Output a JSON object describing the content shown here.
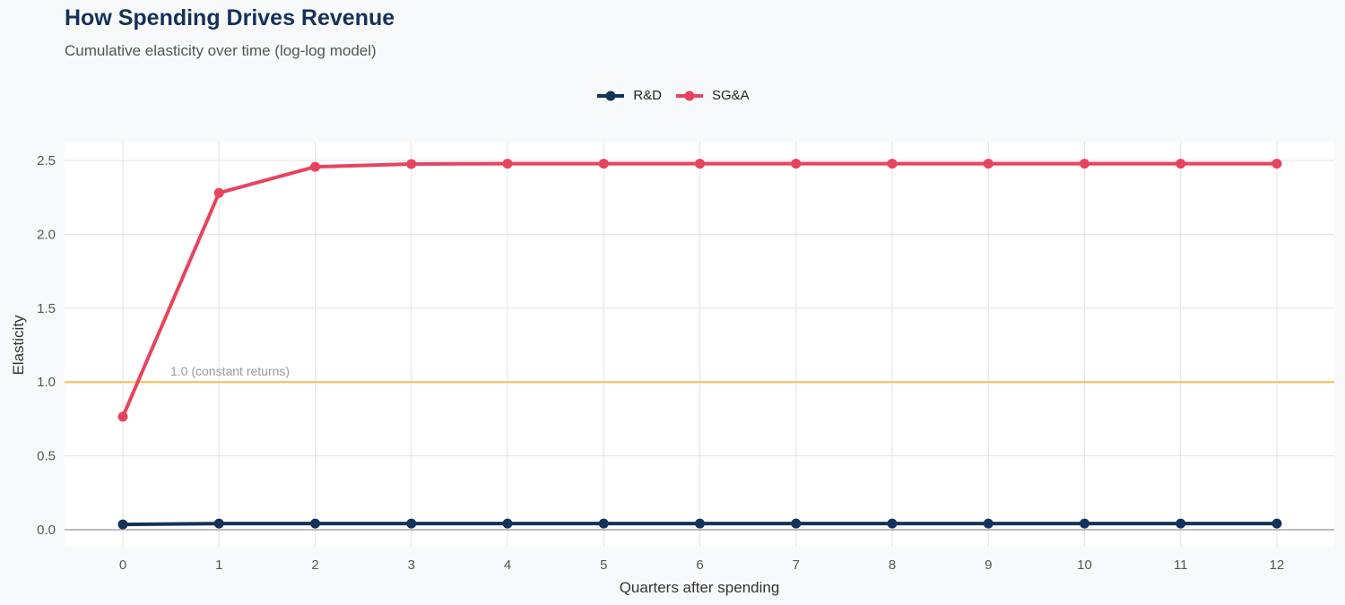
{
  "title": "How Spending Drives Revenue",
  "subtitle": "Cumulative elasticity over time (log-log model)",
  "chart_data": {
    "type": "line",
    "xlabel": "Quarters after spending",
    "ylabel": "Elasticity",
    "x": [
      0,
      1,
      2,
      3,
      4,
      5,
      6,
      7,
      8,
      9,
      10,
      11,
      12
    ],
    "xlim": [
      -0.6,
      12.6
    ],
    "ylim": [
      0,
      2.5
    ],
    "yticks": [
      "0.0",
      "0.5",
      "1.0",
      "1.5",
      "2.0",
      "2.5"
    ],
    "xticks": [
      "0",
      "1",
      "2",
      "3",
      "4",
      "5",
      "6",
      "7",
      "8",
      "9",
      "10",
      "11",
      "12"
    ],
    "grid": true,
    "legend": "top",
    "series": [
      {
        "name": "R&D",
        "color": "#14325a",
        "values": [
          0.036,
          0.042,
          0.042,
          0.042,
          0.042,
          0.042,
          0.042,
          0.042,
          0.042,
          0.042,
          0.042,
          0.042,
          0.042
        ]
      },
      {
        "name": "SG&A",
        "color": "#e8435e",
        "values": [
          0.765,
          2.28,
          2.457,
          2.476,
          2.478,
          2.478,
          2.478,
          2.478,
          2.478,
          2.478,
          2.478,
          2.478,
          2.478
        ]
      }
    ],
    "reference_line": {
      "y": 1.0,
      "label": "1.0 (constant returns)",
      "color": "#f2c14e"
    }
  }
}
